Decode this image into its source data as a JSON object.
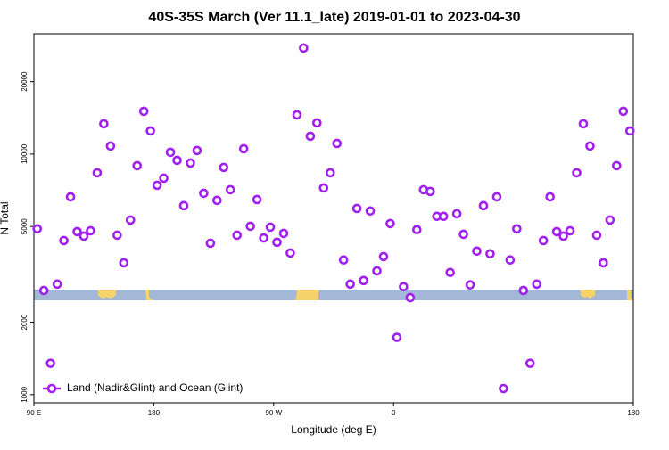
{
  "chart_data": {
    "type": "scatter",
    "title": "40S-35S March (Ver 11.1_late)   2019-01-01 to 2023-04-30",
    "xlabel": "Longitude (deg E)",
    "ylabel": "N Total",
    "yscale": "log",
    "legend": "lower left",
    "xlim": [
      90,
      540
    ],
    "xticks": [
      {
        "value": 90,
        "label": "90 E"
      },
      {
        "value": 180,
        "label": "180"
      },
      {
        "value": 270,
        "label": "90 W"
      },
      {
        "value": 360,
        "label": "0"
      },
      {
        "value": 540,
        "label": "180"
      }
    ],
    "ylim": [
      925,
      31600
    ],
    "yticks": [
      1000,
      2000,
      5000,
      10000,
      20000
    ],
    "x": [
      92.5,
      97.5,
      102.5,
      107.5,
      112.5,
      117.5,
      122.5,
      127.5,
      132.5,
      137.5,
      142.5,
      147.5,
      152.5,
      157.5,
      162.5,
      167.5,
      172.5,
      177.5,
      182.5,
      187.5,
      192.5,
      197.5,
      202.5,
      207.5,
      212.5,
      217.5,
      222.5,
      227.5,
      232.5,
      237.5,
      242.5,
      247.5,
      252.5,
      257.5,
      262.5,
      267.5,
      272.5,
      277.5,
      282.5,
      287.5,
      292.5,
      297.5,
      302.5,
      307.5,
      312.5,
      317.5,
      322.5,
      327.5,
      332.5,
      337.5,
      342.5,
      347.5,
      352.5,
      357.5,
      362.5,
      367.5,
      372.5,
      377.5,
      382.5,
      387.5,
      392.5,
      397.5,
      402.5,
      407.5,
      412.5,
      417.5,
      422.5,
      427.5,
      432.5,
      437.5,
      442.5,
      447.5,
      452.5,
      457.5,
      462.5,
      467.5,
      472.5,
      477.5,
      482.5,
      487.5,
      492.5,
      497.5,
      502.5,
      507.5,
      512.5,
      517.5,
      522.5,
      527.5,
      532.5,
      537.5
    ],
    "series": [
      {
        "name": "Land (Nadir&Glint) and Ocean (Glint)",
        "color": "#a020f0",
        "values": [
          4890,
          2710,
          1350,
          2880,
          4370,
          6640,
          4760,
          4560,
          4800,
          8360,
          13360,
          10800,
          4600,
          3530,
          5320,
          8950,
          15060,
          12480,
          7420,
          7940,
          10170,
          9420,
          6100,
          9180,
          10350,
          6870,
          4260,
          6420,
          8800,
          7110,
          4600,
          10520,
          5010,
          6470,
          4480,
          4970,
          4300,
          4680,
          3880,
          14550,
          27600,
          11860,
          13480,
          7230,
          8360,
          11070,
          3630,
          2880,
          5940,
          2980,
          5800,
          3270,
          3750,
          5140,
          1730,
          2810,
          2530,
          4850,
          7110,
          6990,
          5510,
          5510,
          3220,
          5650,
          4640,
          2860,
          3950,
          6100,
          3850,
          6640,
          1060,
          3630,
          4890,
          2710,
          1350,
          2880,
          4370,
          6640,
          4760,
          4560,
          4800,
          8360,
          13360,
          10800,
          4600,
          3530,
          5320,
          8950,
          15060,
          12480
        ]
      }
    ]
  }
}
